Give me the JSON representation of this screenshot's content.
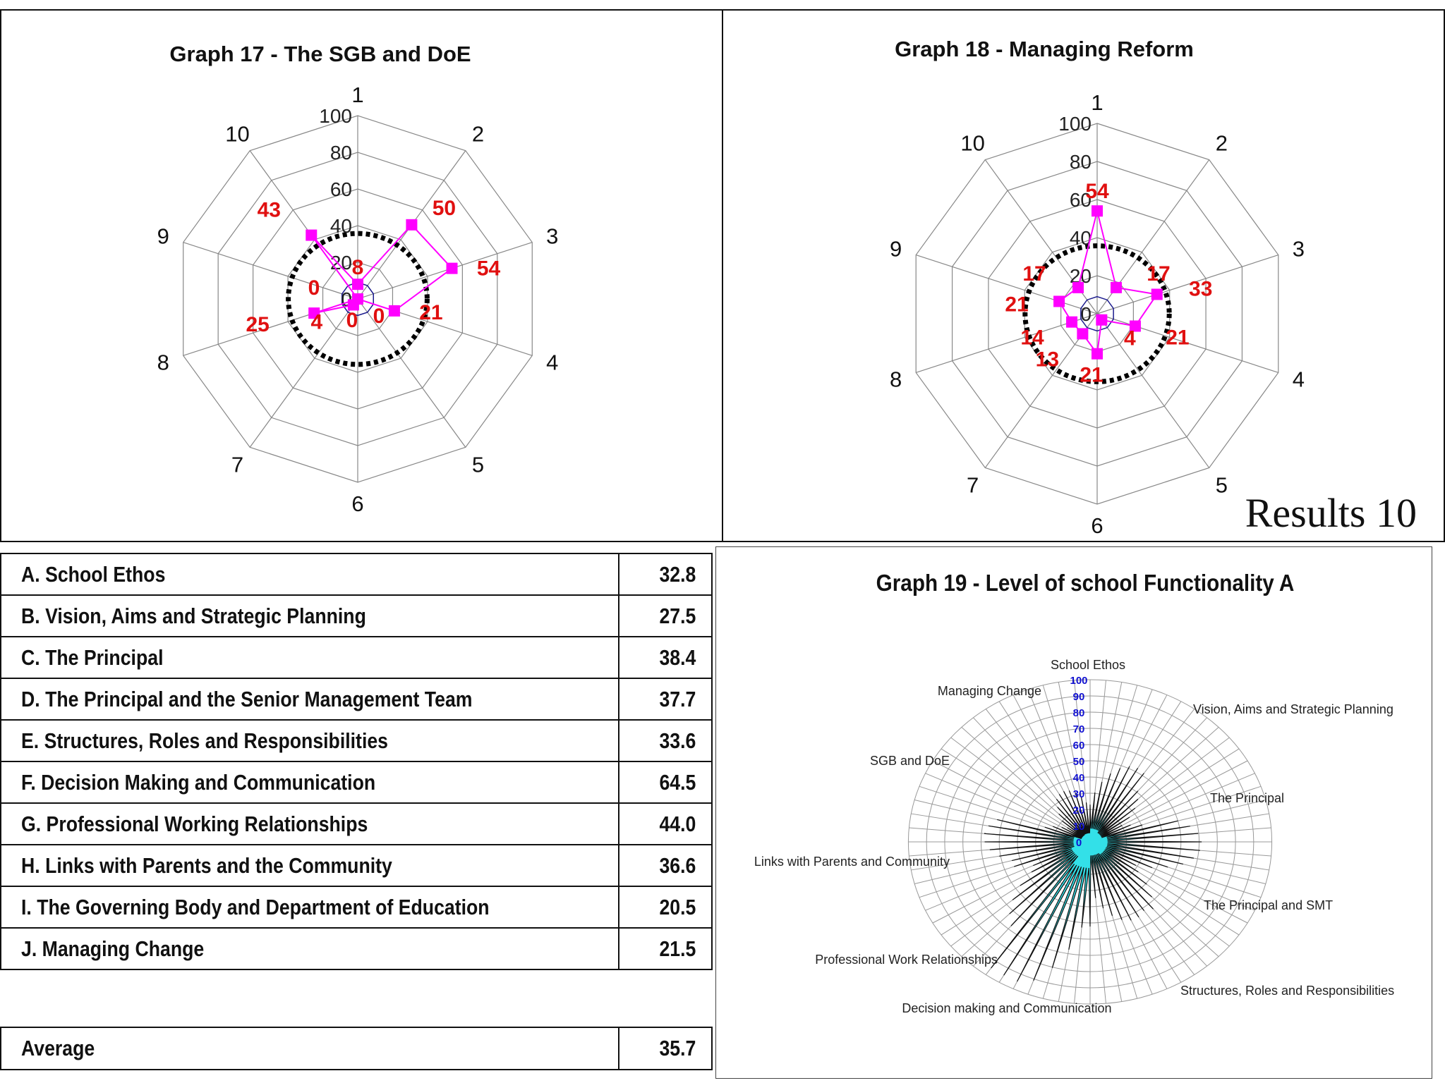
{
  "charts": {
    "g17": {
      "title": "Graph 17 - The SGB and DoE",
      "results_label": ""
    },
    "g18": {
      "title": "Graph 18 - Managing Reform",
      "results_label": "Results 10"
    },
    "g19": {
      "title": "Graph 19 - Level of school Functionality A"
    }
  },
  "table": {
    "rows": [
      {
        "label": "A.  School Ethos",
        "value": "32.8"
      },
      {
        "label": "B.  Vision, Aims and Strategic Planning",
        "value": "27.5"
      },
      {
        "label": "C.  The Principal",
        "value": "38.4"
      },
      {
        "label": "D.  The Principal and the Senior Management Team",
        "value": "37.7"
      },
      {
        "label": "E.  Structures, Roles and Responsibilities",
        "value": "33.6"
      },
      {
        "label": "F.  Decision Making and Communication",
        "value": "64.5"
      },
      {
        "label": "G.  Professional Working Relationships",
        "value": "44.0"
      },
      {
        "label": "H.  Links with Parents and the Community",
        "value": "36.6"
      },
      {
        "label": "I.  The Governing Body and Department of Education",
        "value": "20.5"
      },
      {
        "label": "J.  Managing Change",
        "value": "21.5"
      }
    ],
    "average": {
      "label": "Average",
      "value": "35.7"
    }
  },
  "colors": {
    "series": "#ff00ff",
    "labels": "#e01010",
    "grid": "#888888",
    "ring": "#000000",
    "inner": "#1a1a8c",
    "area_fill": "#33e0e8",
    "tick_blue": "#1010d0"
  },
  "chart_data": [
    {
      "type": "radar",
      "title": "Graph 17 - The SGB and DoE",
      "categories": [
        "1",
        "2",
        "3",
        "4",
        "5",
        "6",
        "7",
        "8",
        "9",
        "10"
      ],
      "radial_ticks": [
        "0",
        "20",
        "40",
        "60",
        "80",
        "100"
      ],
      "rlim": [
        0,
        100
      ],
      "series": [
        {
          "values": [
            8,
            50,
            54,
            21,
            0,
            0,
            4,
            25,
            0,
            43
          ]
        }
      ],
      "reference_ring": 35.7
    },
    {
      "type": "radar",
      "title": "Graph 18 - Managing Reform",
      "categories": [
        "1",
        "2",
        "3",
        "4",
        "5",
        "6",
        "7",
        "8",
        "9",
        "10"
      ],
      "radial_ticks": [
        "0",
        "20",
        "40",
        "60",
        "80",
        "100"
      ],
      "rlim": [
        0,
        100
      ],
      "series": [
        {
          "values": [
            54,
            17,
            33,
            21,
            4,
            21,
            13,
            14,
            21,
            17
          ]
        }
      ],
      "reference_ring": 35.7
    },
    {
      "type": "radar",
      "title": "Graph 19 - Level of school Functionality A",
      "radial_ticks": [
        "0",
        "10",
        "20",
        "30",
        "40",
        "50",
        "60",
        "70",
        "80",
        "90",
        "100"
      ],
      "rlim": [
        0,
        100
      ],
      "sector_labels": [
        "School Ethos",
        "Vision, Aims and Strategic Planning",
        "The Principal",
        "The Principal and SMT",
        "Structures, Roles and Responsibilities",
        "Decision making and Communication",
        "Professional Work Relationships",
        "Links with Parents and Community",
        "SGB and DoE",
        "Managing Change"
      ],
      "sector_averages": [
        32.8,
        27.5,
        38.4,
        37.7,
        33.6,
        64.5,
        44.0,
        36.6,
        20.5,
        21.5
      ]
    }
  ]
}
